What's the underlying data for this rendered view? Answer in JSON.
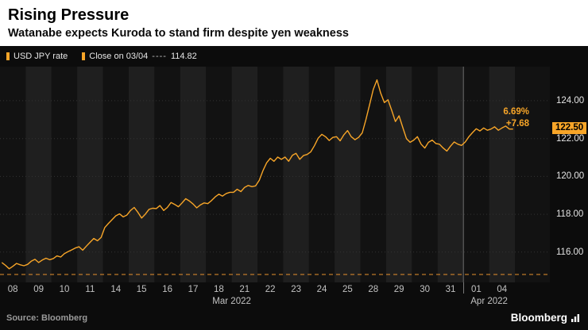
{
  "header": {
    "title": "Rising Pressure",
    "subtitle": "Watanabe expects Kuroda to stand firm despite yen weakness"
  },
  "legend": {
    "series_label": "USD JPY rate",
    "reference_label": "Close on 03/04",
    "reference_dashes": "----",
    "reference_value": "114.82"
  },
  "annotations": {
    "pct_change": "6.69%",
    "abs_change": "+7.68",
    "last_price": "122.50"
  },
  "footer": {
    "source": "Source: Bloomberg",
    "logo": "Bloomberg"
  },
  "colors": {
    "line": "#f7a528",
    "badge_bg": "#f7a528",
    "dashed": "#e8912d",
    "band_dark": "#121212",
    "band_light": "#1f1f1f",
    "panel_bg": "#0c0c0c"
  },
  "chart_data": {
    "type": "line",
    "title": "USD JPY rate",
    "ylabel": "USD/JPY",
    "categories": [
      "08",
      "09",
      "10",
      "11",
      "14",
      "15",
      "16",
      "17",
      "18",
      "21",
      "22",
      "23",
      "24",
      "25",
      "28",
      "29",
      "30",
      "31",
      "01",
      "04"
    ],
    "month_groups": [
      {
        "label": "Mar 2022",
        "start": 0,
        "end": 17
      },
      {
        "label": "Apr 2022",
        "start": 18,
        "end": 19
      }
    ],
    "points_per_day": 7,
    "values": [
      115.45,
      115.3,
      115.12,
      115.25,
      115.4,
      115.33,
      115.28,
      115.35,
      115.52,
      115.62,
      115.45,
      115.58,
      115.68,
      115.6,
      115.66,
      115.8,
      115.74,
      115.92,
      116.02,
      116.12,
      116.22,
      116.28,
      116.1,
      116.32,
      116.52,
      116.72,
      116.6,
      116.78,
      117.3,
      117.52,
      117.72,
      117.92,
      118.02,
      117.86,
      117.96,
      118.2,
      118.36,
      118.1,
      117.8,
      118.0,
      118.26,
      118.32,
      118.3,
      118.46,
      118.2,
      118.36,
      118.62,
      118.52,
      118.4,
      118.6,
      118.82,
      118.7,
      118.54,
      118.34,
      118.5,
      118.6,
      118.56,
      118.72,
      118.92,
      119.06,
      118.96,
      119.1,
      119.16,
      119.16,
      119.32,
      119.2,
      119.42,
      119.52,
      119.46,
      119.5,
      119.8,
      120.3,
      120.72,
      120.96,
      120.8,
      121.02,
      120.9,
      121.02,
      120.8,
      121.12,
      121.22,
      120.9,
      121.1,
      121.16,
      121.3,
      121.62,
      122.02,
      122.22,
      122.1,
      121.9,
      122.06,
      122.1,
      121.88,
      122.2,
      122.42,
      122.1,
      121.94,
      122.06,
      122.3,
      123.0,
      123.8,
      124.6,
      125.1,
      124.4,
      123.9,
      124.05,
      123.5,
      122.9,
      123.2,
      122.6,
      122.0,
      121.8,
      121.92,
      122.1,
      121.7,
      121.5,
      121.8,
      121.92,
      121.74,
      121.7,
      121.5,
      121.34,
      121.6,
      121.82,
      121.7,
      121.64,
      121.82,
      122.1,
      122.32,
      122.52,
      122.4,
      122.56,
      122.44,
      122.5,
      122.62,
      122.44,
      122.56,
      122.66,
      122.5,
      122.5
    ],
    "y_ticks": [
      116,
      118,
      120,
      122,
      124
    ],
    "y_tick_labels": [
      "116.00",
      "118.00",
      "120.00",
      "122.00",
      "124.00"
    ],
    "ylim": [
      114.4,
      125.8
    ],
    "reference_value": 114.82,
    "last_value": 122.5,
    "legend_position": "top-left",
    "grid": true
  }
}
